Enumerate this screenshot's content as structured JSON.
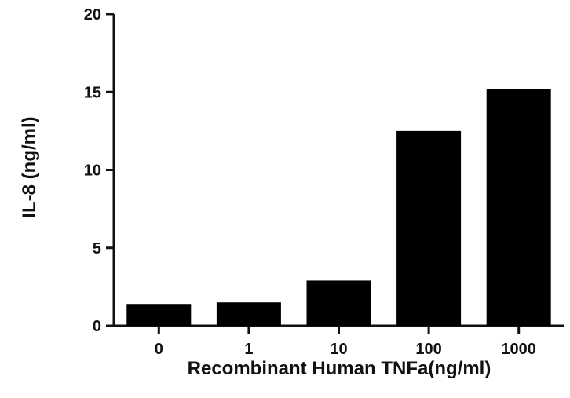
{
  "chart_data": {
    "type": "bar",
    "title": "",
    "xlabel": "Recombinant Human TNFa(ng/ml)",
    "ylabel": "IL-8 (ng/ml)",
    "categories": [
      "0",
      "1",
      "10",
      "100",
      "1000"
    ],
    "values": [
      1.4,
      1.5,
      2.9,
      12.5,
      15.2
    ],
    "ylim": [
      0,
      20
    ],
    "yticks": [
      "0",
      "5",
      "10",
      "15",
      "20"
    ],
    "grid": false,
    "legend": "none",
    "bar_color": "#000000",
    "axis_color": "#111111"
  }
}
